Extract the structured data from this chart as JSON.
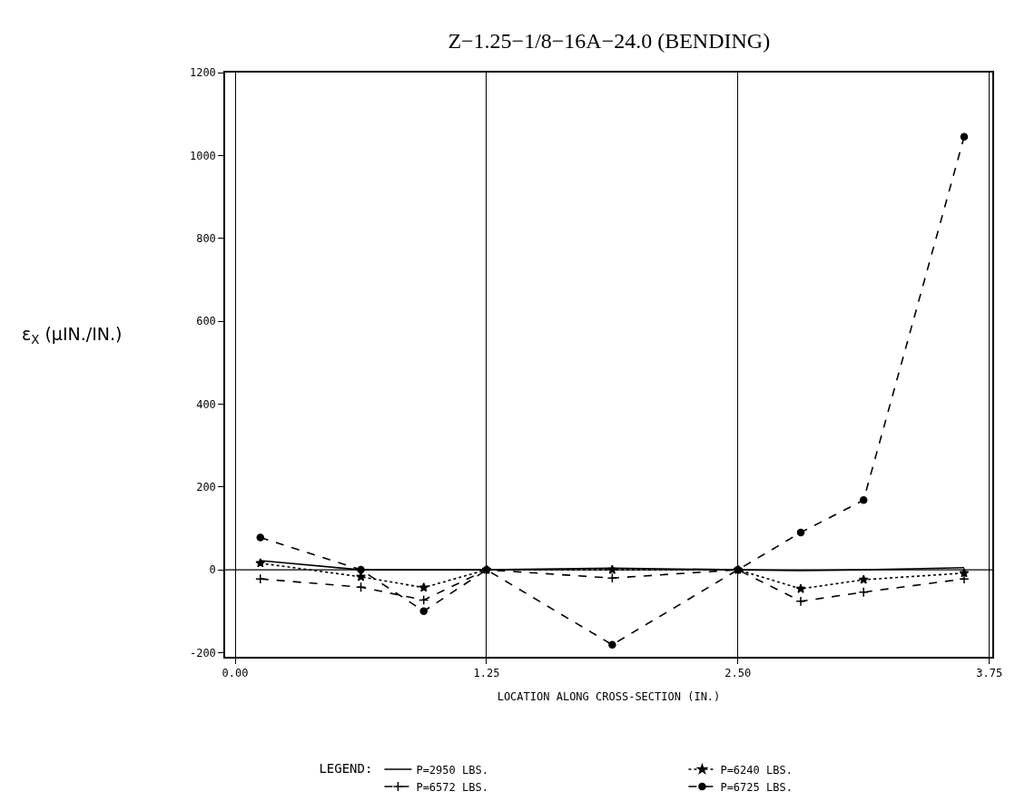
{
  "chart_data": {
    "type": "line",
    "title": "Z−1.25−1/8−16A−24.0 (BENDING)",
    "xlabel": "LOCATION ALONG CROSS-SECTION (IN.)",
    "ylabel": "ε$_{X}$ (μIN./IN.)",
    "legend_title": "LEGEND:",
    "x": [
      0.125,
      0.625,
      0.9375,
      1.25,
      1.875,
      2.5,
      2.8125,
      3.125,
      3.625
    ],
    "series": [
      {
        "name": "P=2950 LBS.",
        "color": "#000000",
        "marker": "none",
        "line_style": "solid",
        "values": [
          22,
          0,
          0,
          0,
          4,
          0,
          -2,
          0,
          5
        ]
      },
      {
        "name": "P=6240 LBS.",
        "color": "#000000",
        "marker": "star",
        "line_style": "dotted",
        "values": [
          16,
          -17,
          -43,
          0,
          0,
          0,
          -46,
          -24,
          -8
        ]
      },
      {
        "name": "P=6572 LBS.",
        "color": "#000000",
        "marker": "cross",
        "line_style": "dashed",
        "values": [
          -22,
          -42,
          -73,
          0,
          -20,
          0,
          -76,
          -54,
          -22
        ]
      },
      {
        "name": "P=6725 LBS.",
        "color": "#000000",
        "marker": "circle",
        "line_style": "dashed",
        "values": [
          78,
          0,
          -100,
          0,
          -181,
          0,
          90,
          168,
          1045
        ]
      }
    ],
    "xlim": [
      -0.05,
      3.765
    ],
    "xticks": [
      {
        "value": 0,
        "label": "0.00"
      },
      {
        "value": 1.25,
        "label": "1.25"
      },
      {
        "value": 2.5,
        "label": "2.50"
      },
      {
        "value": 3.75,
        "label": "3.75"
      }
    ],
    "ylim": [
      -210,
      1200
    ],
    "yticks": [
      -200,
      0,
      200,
      400,
      600,
      800,
      1000,
      1200
    ],
    "grid": "x",
    "legend": "bottom",
    "ref_lines": [
      {
        "axis": "y",
        "value": 0
      }
    ]
  }
}
